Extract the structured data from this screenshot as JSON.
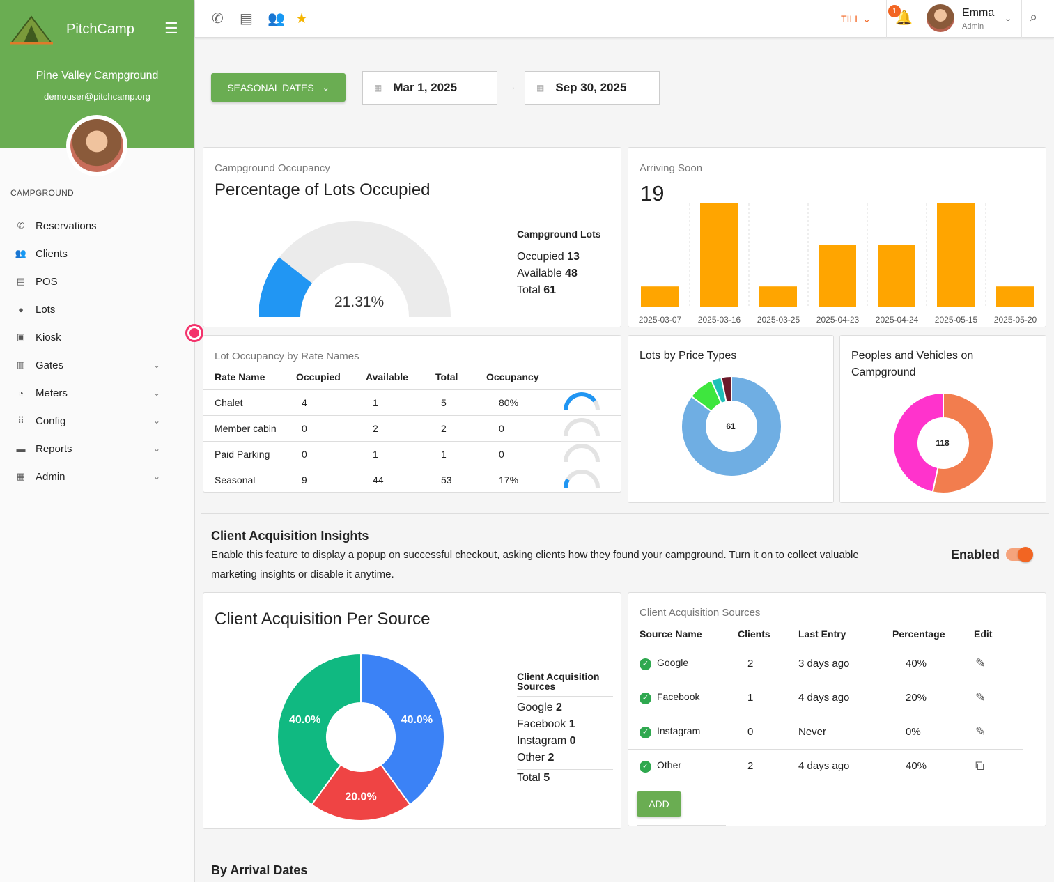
{
  "sidebar": {
    "brand": "PitchCamp",
    "campground": "Pine Valley Campground",
    "email": "demouser@pitchcamp.org",
    "section": "CAMPGROUND",
    "items": [
      {
        "label": "Reservations",
        "icon": "phone-icon",
        "glyph": "✆",
        "has_chevron": false
      },
      {
        "label": "Clients",
        "icon": "people-icon",
        "glyph": "👥",
        "has_chevron": false
      },
      {
        "label": "POS",
        "icon": "store-icon",
        "glyph": "▤",
        "has_chevron": false
      },
      {
        "label": "Lots",
        "icon": "location-pin-icon",
        "glyph": "●",
        "has_chevron": false
      },
      {
        "label": "Kiosk",
        "icon": "kiosk-icon",
        "glyph": "▣",
        "has_chevron": false
      },
      {
        "label": "Gates",
        "icon": "gate-icon",
        "glyph": "▥",
        "has_chevron": true
      },
      {
        "label": "Meters",
        "icon": "meter-icon",
        "glyph": "◔",
        "has_chevron": true
      },
      {
        "label": "Config",
        "icon": "grid-icon",
        "glyph": "⠿",
        "has_chevron": true
      },
      {
        "label": "Reports",
        "icon": "print-icon",
        "glyph": "▬",
        "has_chevron": true
      },
      {
        "label": "Admin",
        "icon": "dashboard-icon",
        "glyph": "▦",
        "has_chevron": true
      }
    ]
  },
  "topbar": {
    "till": "TILL",
    "notifications": "1",
    "user_name": "Emma",
    "user_role": "Admin"
  },
  "filter": {
    "seasonal": "SEASONAL DATES",
    "start": "Mar 1, 2025",
    "end": "Sep 30, 2025"
  },
  "occupancy": {
    "sub": "Campground Occupancy",
    "title": "Percentage of Lots Occupied",
    "percent_label": "21.31%",
    "percent": 0.2131,
    "legend_title": "Campground Lots",
    "occupied_label": "Occupied",
    "occupied": "13",
    "available_label": "Available",
    "available": "48",
    "total_label": "Total",
    "total": "61"
  },
  "arriving": {
    "sub": "Arriving Soon",
    "count": "19"
  },
  "rate_table": {
    "sub": "Lot Occupancy by Rate Names",
    "headers": [
      "Rate Name",
      "Occupied",
      "Available",
      "Total",
      "Occupancy"
    ],
    "rows": [
      {
        "name": "Chalet",
        "occupied": "4",
        "available": "1",
        "total": "5",
        "occupancy": "80%",
        "frac": 0.8
      },
      {
        "name": "Member cabin",
        "occupied": "0",
        "available": "2",
        "total": "2",
        "occupancy": "0",
        "frac": 0
      },
      {
        "name": "Paid Parking",
        "occupied": "0",
        "available": "1",
        "total": "1",
        "occupancy": "0",
        "frac": 0
      },
      {
        "name": "Seasonal",
        "occupied": "9",
        "available": "44",
        "total": "53",
        "occupancy": "17%",
        "frac": 0.17
      }
    ]
  },
  "price_types": {
    "title": "Lots by Price Types",
    "center": "61"
  },
  "people_vehicles": {
    "title_line1": "Peoples and Vehicles on",
    "title_line2": "Campground",
    "center": "118"
  },
  "insights": {
    "title": "Client Acquisition Insights",
    "desc_line1": "Enable this feature to display a popup on successful checkout, asking clients how they found your campground. Turn it on to collect valuable",
    "desc_line2": "marketing insights or disable it anytime.",
    "enabled_label": "Enabled",
    "enabled": true
  },
  "acq_chart_card": {
    "title": "Client Acquisition Per Source",
    "legend_title_line1": "Client Acquisition",
    "legend_title_line2": "Sources",
    "google_label": "Google",
    "google": "2",
    "facebook_label": "Facebook",
    "facebook": "1",
    "instagram_label": "Instagram",
    "instagram": "0",
    "other_label": "Other",
    "other": "2",
    "total_label": "Total",
    "total": "5"
  },
  "acq_table": {
    "sub": "Client Acquisition Sources",
    "headers": [
      "Source Name",
      "Clients",
      "Last Entry",
      "Percentage",
      "Edit"
    ],
    "rows": [
      {
        "name": "Google",
        "clients": "2",
        "last": "3 days ago",
        "pct": "40%",
        "edit_icon": "pencil-icon"
      },
      {
        "name": "Facebook",
        "clients": "1",
        "last": "4 days ago",
        "pct": "20%",
        "edit_icon": "pencil-icon"
      },
      {
        "name": "Instagram",
        "clients": "0",
        "last": "Never",
        "pct": "0%",
        "edit_icon": "pencil-icon"
      },
      {
        "name": "Other",
        "clients": "2",
        "last": "4 days ago",
        "pct": "40%",
        "edit_icon": "open-external-icon"
      }
    ],
    "add": "ADD"
  },
  "arrival_section": {
    "title": "By Arrival Dates"
  },
  "colors": {
    "brand": "#6aad52",
    "accent": "#f26522",
    "bar": "#ffa500",
    "gauge": "#2196f3"
  },
  "chart_data": [
    {
      "type": "bar",
      "title": "Arriving Soon",
      "categories": [
        "2025-03-07",
        "2025-03-16",
        "2025-03-25",
        "2025-04-23",
        "2025-04-24",
        "2025-05-15",
        "2025-05-20"
      ],
      "values": [
        1,
        5,
        1,
        3,
        3,
        5,
        1
      ],
      "ylim": [
        0,
        5
      ]
    },
    {
      "type": "pie",
      "title": "Lots by Price Types",
      "values": [
        52,
        5,
        2,
        2
      ],
      "colors": [
        "#6faee3",
        "#3ee63e",
        "#1fc0b8",
        "#6b1a2a"
      ]
    },
    {
      "type": "pie",
      "title": "Peoples and Vehicles on Campground",
      "values": [
        63,
        55
      ],
      "colors": [
        "#f27d4e",
        "#ff33cc"
      ]
    },
    {
      "type": "pie",
      "title": "Client Acquisition Per Source",
      "categories": [
        "Google",
        "Facebook",
        "Instagram",
        "Other"
      ],
      "values": [
        2,
        1,
        0,
        2
      ],
      "labels": [
        "40.0%",
        "20.0%",
        "",
        "40.0%"
      ],
      "colors": [
        "#3b82f6",
        "#ef4444",
        "#f59e0b",
        "#10b981"
      ]
    }
  ]
}
